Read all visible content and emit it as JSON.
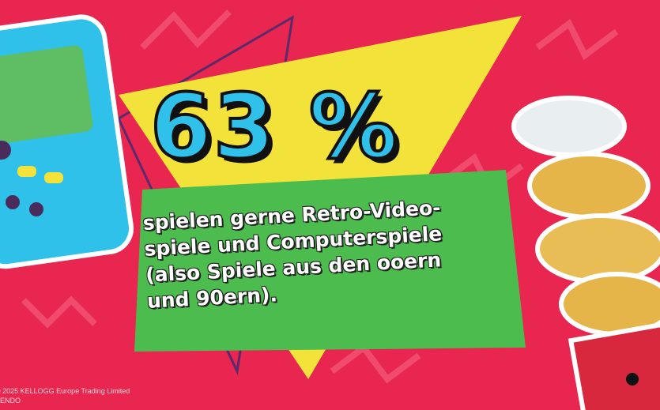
{
  "headline": {
    "value": "63 %"
  },
  "subtitle": {
    "lines": [
      "spielen gerne Retro-Video-",
      "spiele und Computerspiele",
      "(also Spiele aus den ooern",
      "und 90ern)."
    ]
  },
  "footer": {
    "copyright": "© 2025 KELLOGG Europe Trading Limited",
    "line2": "ENDO"
  },
  "colors": {
    "background": "#e8264f",
    "triangle": "#f3e23a",
    "panel": "#4cbc4f",
    "headline": "#2fc1ea",
    "device": "#2fc1ea"
  },
  "illustrations": [
    "handheld-game-device",
    "chips-can"
  ]
}
